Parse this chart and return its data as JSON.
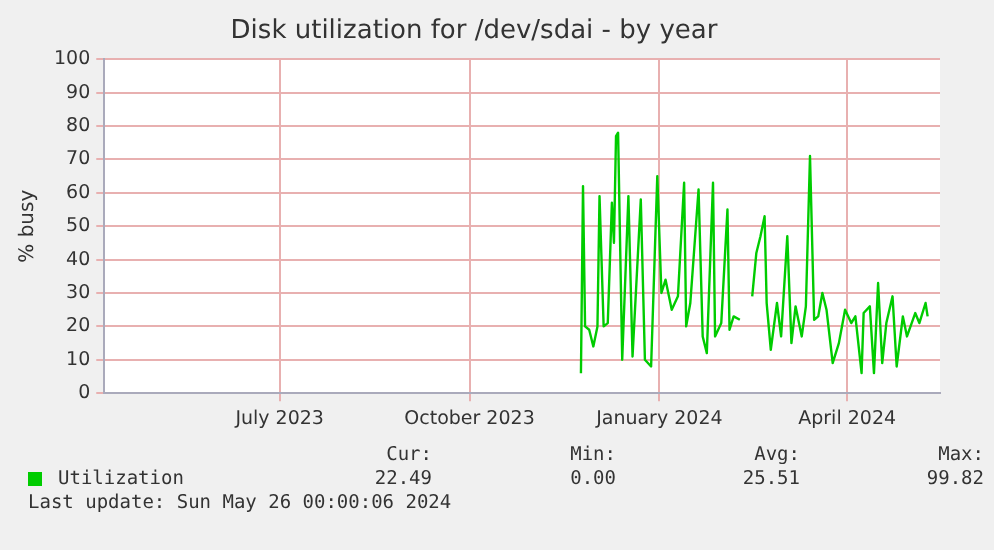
{
  "chart_data": {
    "type": "line",
    "title": "Disk utilization for /dev/sdai - by year",
    "ylabel": "% busy",
    "xlim": [
      "2023-04-22",
      "2024-05-31"
    ],
    "xticks": [
      {
        "value": "2023-07-16",
        "label": "July 2023"
      },
      {
        "value": "2023-10-16",
        "label": "October 2023"
      },
      {
        "value": "2024-01-16",
        "label": "January 2024"
      },
      {
        "value": "2024-04-16",
        "label": "April 2024"
      }
    ],
    "ylim": [
      0,
      100
    ],
    "yticks": [
      0,
      10,
      20,
      30,
      40,
      50,
      60,
      70,
      80,
      90,
      100
    ],
    "grid": true,
    "legend": "bottom",
    "marker": "none",
    "series": [
      {
        "name": "Utilization",
        "color": "#00cc00",
        "x": [
          "2023-12-09",
          "2023-12-10",
          "2023-12-11",
          "2023-12-13",
          "2023-12-15",
          "2023-12-17",
          "2023-12-18",
          "2023-12-20",
          "2023-12-22",
          "2023-12-24",
          "2023-12-25",
          "2023-12-26",
          "2023-12-27",
          "2023-12-29",
          "2024-01-01",
          "2024-01-03",
          "2024-01-07",
          "2024-01-09",
          "2024-01-12",
          "2024-01-15",
          "2024-01-17",
          "2024-01-19",
          "2024-01-22",
          "2024-01-25",
          "2024-01-28",
          "2024-01-29",
          "2024-01-31",
          "2024-02-04",
          "2024-02-06",
          "2024-02-08",
          "2024-02-11",
          "2024-02-12",
          "2024-02-15",
          "2024-02-18",
          "2024-02-19",
          "2024-02-21",
          "2024-02-24",
          "2024-02-27",
          "2024-03-01",
          "2024-03-03",
          "2024-03-05",
          "2024-03-07",
          "2024-03-08",
          "2024-03-10",
          "2024-03-13",
          "2024-03-15",
          "2024-03-18",
          "2024-03-20",
          "2024-03-22",
          "2024-03-25",
          "2024-03-27",
          "2024-03-29",
          "2024-03-31",
          "2024-04-02",
          "2024-04-04",
          "2024-04-06",
          "2024-04-09",
          "2024-04-12",
          "2024-04-15",
          "2024-04-18",
          "2024-04-20",
          "2024-04-23",
          "2024-04-24",
          "2024-04-27",
          "2024-04-29",
          "2024-05-01",
          "2024-05-03",
          "2024-05-05",
          "2024-05-08",
          "2024-05-10",
          "2024-05-13",
          "2024-05-15",
          "2024-05-19",
          "2024-05-21",
          "2024-05-24",
          "2024-05-25"
        ],
        "values": [
          6,
          62,
          20,
          19,
          14,
          20,
          59,
          20,
          21,
          57,
          45,
          77,
          78,
          10,
          59,
          11,
          58,
          10,
          8,
          65,
          30,
          34,
          25,
          29,
          63,
          20,
          27,
          61,
          17,
          12,
          63,
          17,
          21,
          55,
          19,
          23,
          22,
          null,
          29,
          42,
          47,
          53,
          27,
          13,
          27,
          17,
          47,
          15,
          26,
          17,
          26,
          71,
          22,
          23,
          30,
          25,
          9,
          15,
          25,
          21,
          23,
          6,
          24,
          26,
          6,
          33,
          9,
          21,
          29,
          8,
          23,
          17,
          24,
          21,
          27,
          23
        ]
      }
    ],
    "annotations": [
      "Cur:",
      "22.49",
      "Min:",
      "0.00",
      "Avg:",
      "25.51",
      "Max:",
      "99.82",
      "Last update: Sun May 26 00:00:06 2024"
    ]
  }
}
